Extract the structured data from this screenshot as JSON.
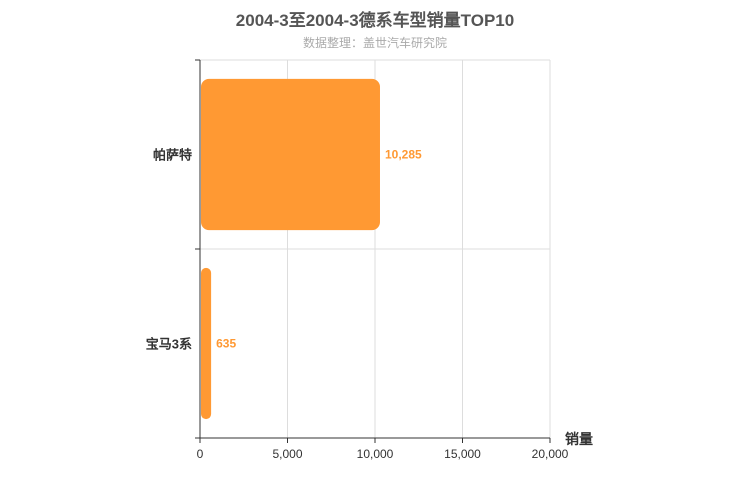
{
  "chart_data": {
    "type": "bar",
    "orientation": "horizontal",
    "title": "2004-3至2004-3德系车型销量TOP10",
    "subtitle": "数据整理：盖世汽车研究院",
    "categories": [
      "帕萨特",
      "宝马3系"
    ],
    "values": [
      10285,
      635
    ],
    "value_labels": [
      "10,285",
      "635"
    ],
    "xlabel": "销量",
    "xlim": [
      0,
      20000
    ],
    "x_ticks": [
      0,
      5000,
      10000,
      15000,
      20000
    ],
    "x_tick_labels": [
      "0",
      "5,000",
      "10,000",
      "15,000",
      "20,000"
    ],
    "grid": true,
    "legend": "none",
    "bar_color": "#ff9933",
    "label_color": "#ff9933"
  }
}
